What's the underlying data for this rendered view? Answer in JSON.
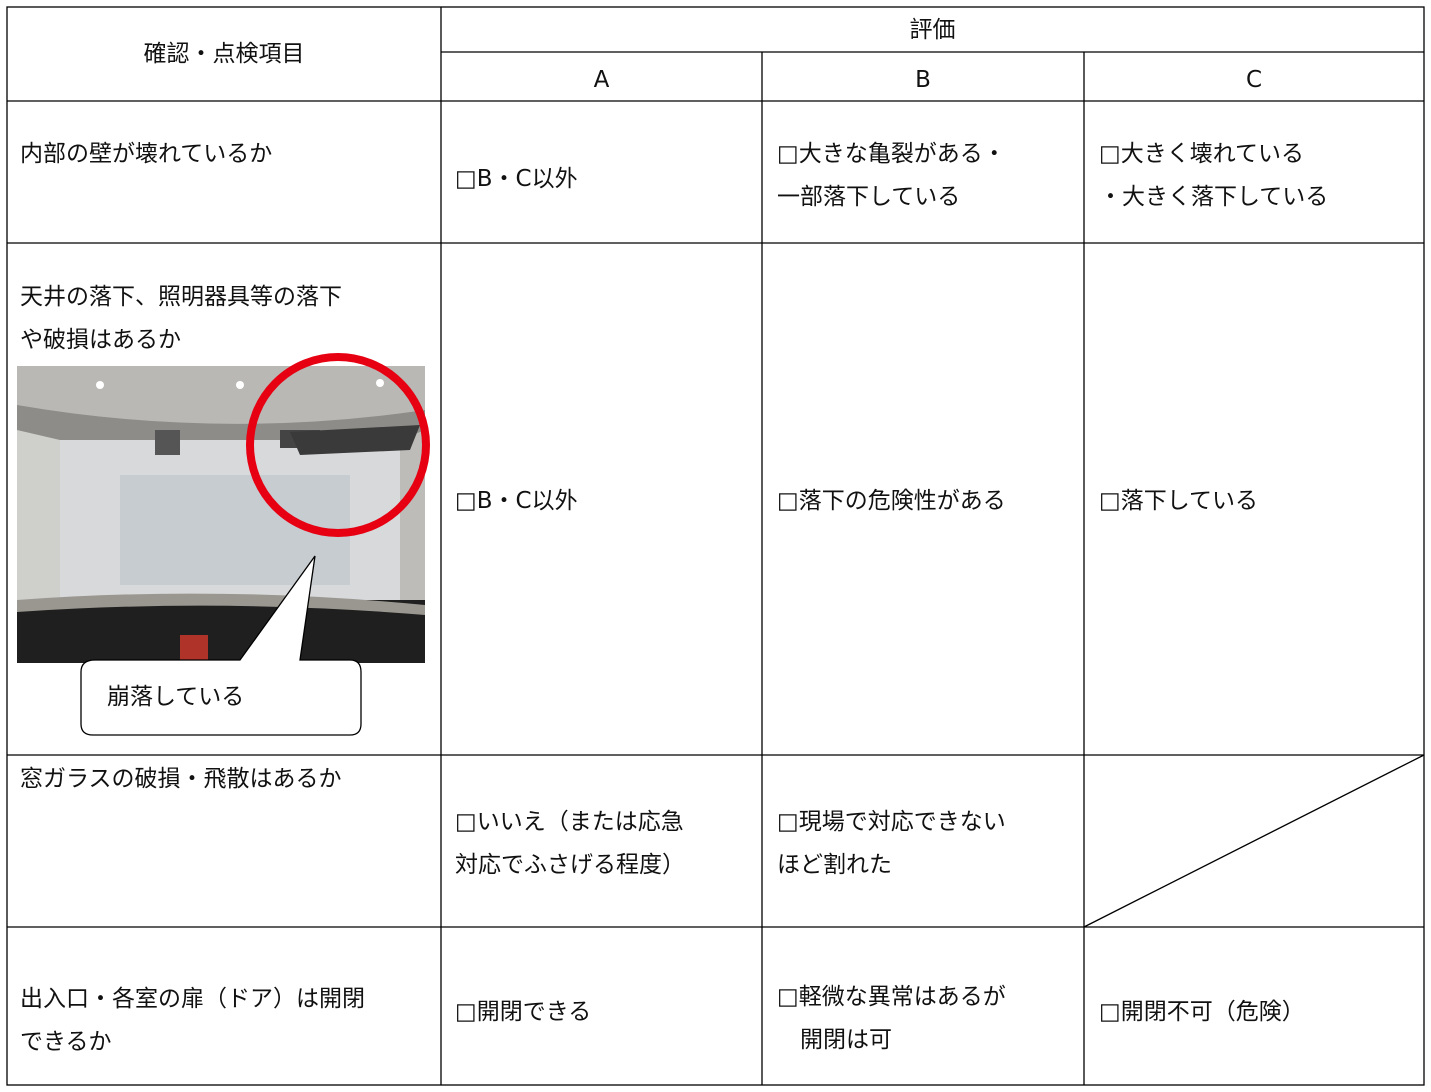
{
  "header": {
    "item": "確認・点検項目",
    "evaluation": "評価",
    "grades": [
      "A",
      "B",
      "C"
    ]
  },
  "rows": [
    {
      "item": [
        "内部の壁が壊れているか"
      ],
      "a": [
        "□B・C以外"
      ],
      "b": [
        "□大きな亀裂がある・",
        "一部落下している"
      ],
      "c": [
        "□大きく壊れている",
        "・大きく落下している"
      ]
    },
    {
      "item": [
        "天井の落下、照明器具等の落下",
        "や破損はあるか"
      ],
      "a": [
        "□B・C以外"
      ],
      "b": [
        "□落下の危険性がある"
      ],
      "c": [
        "□落下している"
      ]
    },
    {
      "item": [
        "窓ガラスの破損・飛散はあるか"
      ],
      "a": [
        "□いいえ（または応急",
        "対応でふさげる程度）"
      ],
      "b": [
        "□現場で対応できない",
        "ほど割れた"
      ]
    },
    {
      "item": [
        "出入口・各室の扉（ドア）は開閉",
        "できるか"
      ],
      "a": [
        "□開閉できる"
      ],
      "b": [
        "□軽微な異常はあるが",
        "　開閉は可"
      ],
      "c": [
        "□開閉不可（危険）"
      ]
    }
  ],
  "photo_callout": "崩落している"
}
